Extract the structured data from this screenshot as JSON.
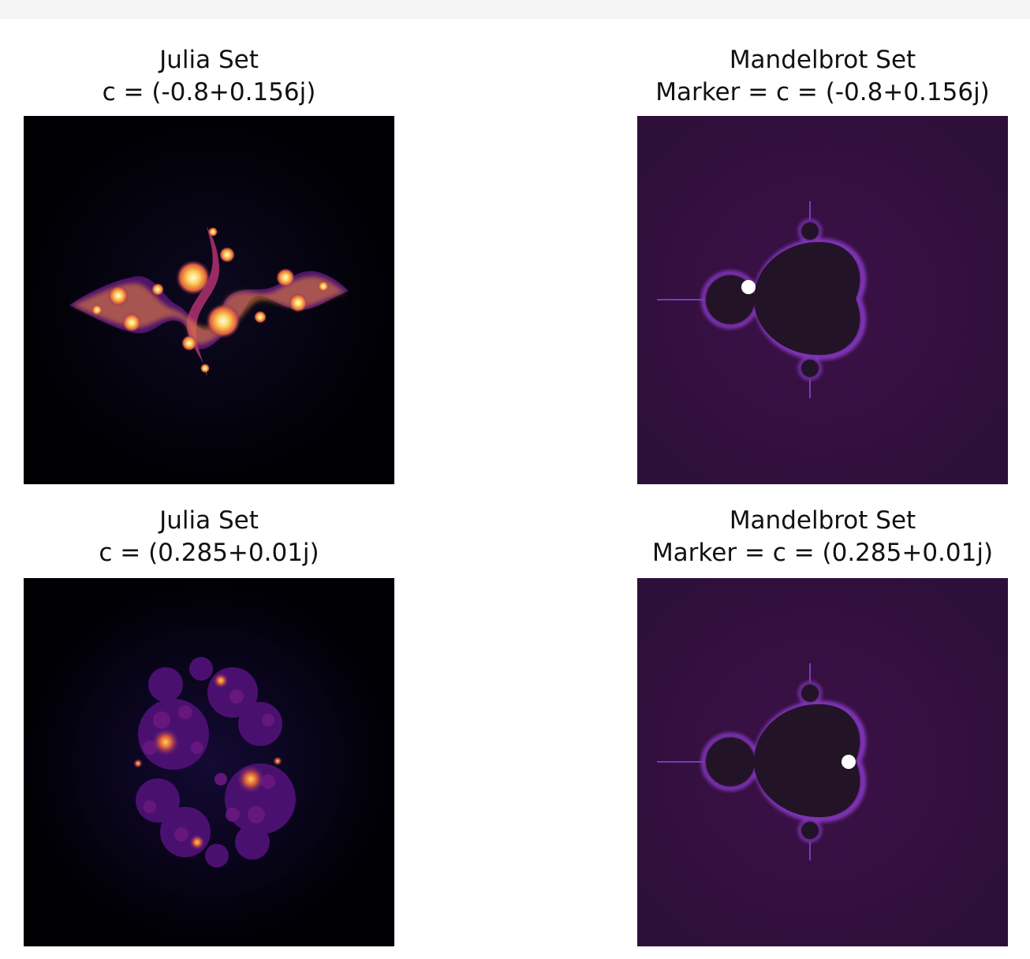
{
  "chart_data": [
    {
      "type": "heatmap",
      "title": "Julia Set",
      "subtitle": "c = (-0.8+0.156j)",
      "c": {
        "re": -0.8,
        "im": 0.156
      },
      "colormap": "inferno",
      "axes": "off"
    },
    {
      "type": "heatmap",
      "title": "Mandelbrot Set",
      "subtitle": "Marker = c = (-0.8+0.156j)",
      "marker": {
        "re": -0.8,
        "im": 0.156,
        "color": "#ffffff"
      },
      "colormap": "magma",
      "axes": "off"
    },
    {
      "type": "heatmap",
      "title": "Julia Set",
      "subtitle": "c = (0.285+0.01j)",
      "c": {
        "re": 0.285,
        "im": 0.01
      },
      "colormap": "inferno",
      "axes": "off"
    },
    {
      "type": "heatmap",
      "title": "Mandelbrot Set",
      "subtitle": "Marker = c = (0.285+0.01j)",
      "marker": {
        "re": 0.285,
        "im": 0.01,
        "color": "#ffffff"
      },
      "colormap": "magma",
      "axes": "off"
    }
  ]
}
